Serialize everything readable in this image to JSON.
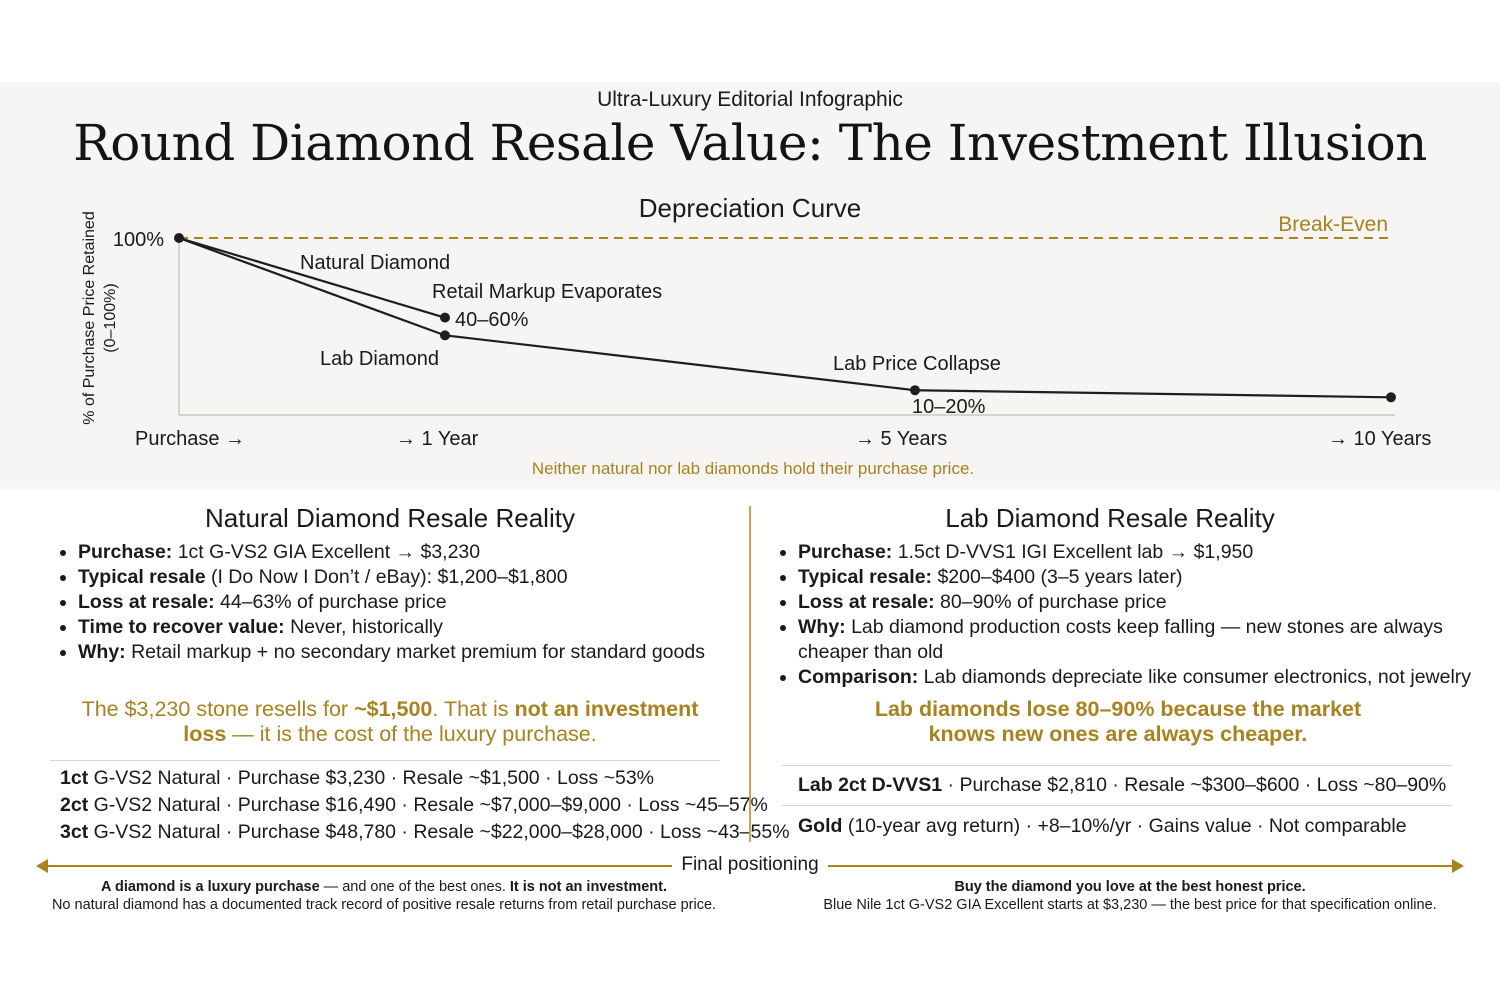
{
  "header": {
    "kicker": "Ultra-Luxury Editorial Infographic",
    "title": "Round Diamond Resale Value: The Investment Illusion"
  },
  "chart_data": {
    "type": "line",
    "title": "Depreciation Curve",
    "ylabel": "% of Purchase Price Retained",
    "ylabel_sub": "(0–100%)",
    "ylim": [
      0,
      100
    ],
    "y_tick_label": "100%",
    "x_labels": [
      "Purchase →",
      "→ 1 Year",
      "→ 5 Years",
      "→ 10 Years"
    ],
    "x": [
      0,
      1,
      5,
      10
    ],
    "series": [
      {
        "name": "Natural Diamond",
        "x": [
          0,
          1
        ],
        "values": [
          100,
          55
        ]
      },
      {
        "name": "Lab Diamond",
        "x": [
          0,
          1,
          5,
          10
        ],
        "values": [
          100,
          45,
          14,
          10
        ]
      }
    ],
    "reference_line": {
      "label": "Break-Even",
      "value": 100
    },
    "annotations": {
      "markup": "Retail Markup Evaporates",
      "markup_range": "40–60%",
      "collapse": "Lab Price Collapse",
      "collapse_range": "10–20%"
    },
    "caption": "Neither natural nor lab diamonds hold their purchase price.",
    "colors": {
      "line": "#1e1e1e",
      "accent": "#a8821f",
      "axis": "#c9c6c0"
    }
  },
  "natural": {
    "title": "Natural Diamond Resale Reality",
    "bullets": [
      {
        "k": "Purchase:",
        "v": " 1ct G-VS2 GIA Excellent → $3,230"
      },
      {
        "k": "Typical resale",
        "v": " (I Do Now I Don’t / eBay): $1,200–$1,800"
      },
      {
        "k": "Loss at resale:",
        "v": " 44–63% of purchase price"
      },
      {
        "k": "Time to recover value:",
        "v": " Never, historically"
      },
      {
        "k": "Why:",
        "v": " Retail markup + no secondary market premium for standard goods"
      }
    ],
    "callout": {
      "p1": "The $3,230 stone resells for ",
      "b1": "~$1,500",
      "p2": ". That is ",
      "b2": "not an investment loss",
      "p3": " — it is the cost of the luxury purchase."
    },
    "rows": [
      {
        "k": "1ct",
        "v": " G-VS2 Natural · Purchase $3,230 · Resale ~$1,500 · Loss ~53%"
      },
      {
        "k": "2ct",
        "v": " G-VS2 Natural · Purchase $16,490 · Resale ~$7,000–$9,000 · Loss ~45–57%"
      },
      {
        "k": "3ct",
        "v": " G-VS2 Natural · Purchase $48,780 · Resale ~$22,000–$28,000 · Loss ~43–55%"
      }
    ]
  },
  "lab": {
    "title": "Lab Diamond Resale Reality",
    "bullets": [
      {
        "k": "Purchase:",
        "v": " 1.5ct D-VVS1 IGI Excellent lab → $1,950"
      },
      {
        "k": "Typical resale:",
        "v": " $200–$400 (3–5 years later)"
      },
      {
        "k": "Loss at resale:",
        "v": " 80–90% of purchase price"
      },
      {
        "k": "Why:",
        "v": " Lab diamond production costs keep falling — new stones are always cheaper than old"
      },
      {
        "k": "Comparison:",
        "v": " Lab diamonds depreciate like consumer electronics, not jewelry"
      }
    ],
    "callout": "Lab diamonds lose 80–90% because the market knows new ones are always cheaper.",
    "rows": [
      {
        "k": "Lab 2ct D-VVS1",
        "v": " · Purchase $2,810 · Resale ~$300–$600 · Loss ~80–90%"
      },
      {
        "k": "Gold",
        "v": " (10-year avg return) · +8–10%/yr · Gains value · Not comparable"
      }
    ]
  },
  "final": {
    "label": "Final positioning",
    "left_b1": "A diamond is a luxury purchase",
    "left_p1": " — and one of the best ones. ",
    "left_b2": "It is not an investment.",
    "left_line2": "No natural diamond has a documented track record of positive resale returns from retail purchase price.",
    "right_b1": "Buy the diamond you love at the best honest price.",
    "right_line2": "Blue Nile 1ct G-VS2 GIA Excellent starts at $3,230 — the best price for that specification online."
  }
}
